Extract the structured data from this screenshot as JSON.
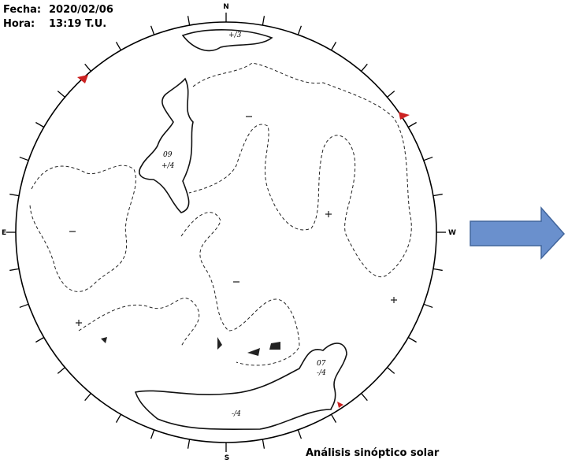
{
  "header": {
    "date_label": "Fecha:",
    "date": "2020/02/06",
    "time_label": "Hora:",
    "time": "13:19 T.U."
  },
  "compass": {
    "north": "N",
    "south": "S",
    "east": "E",
    "west": "W"
  },
  "annotations": [
    "+/3",
    "09",
    "+/4",
    "07",
    "-/4",
    "-/4"
  ],
  "caption": "Análisis sinóptico solar"
}
